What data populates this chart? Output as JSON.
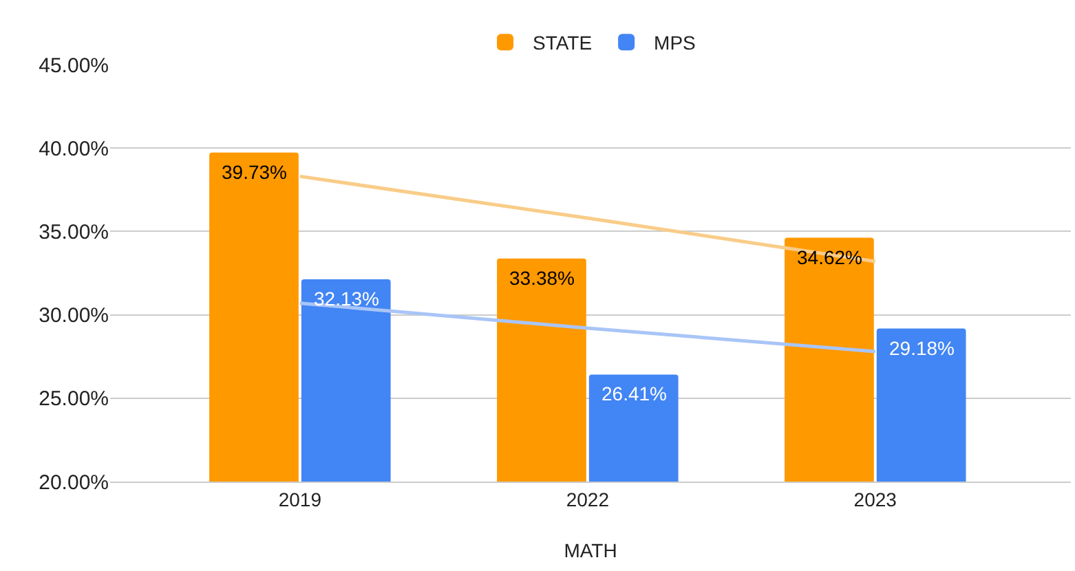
{
  "chart_data": {
    "type": "bar",
    "xlabel": "MATH",
    "categories": [
      "2019",
      "2022",
      "2023"
    ],
    "series": [
      {
        "name": "STATE",
        "color": "#ff9900",
        "values": [
          39.73,
          33.38,
          34.62
        ],
        "value_labels": [
          "39.73%",
          "33.38%",
          "34.62%"
        ]
      },
      {
        "name": "MPS",
        "color": "#4285f4",
        "values": [
          32.13,
          26.41,
          29.18
        ],
        "value_labels": [
          "32.13%",
          "26.41%",
          "29.18%"
        ]
      },
      {
        "type": "line",
        "color": "#f9cc88",
        "values": [
          38.3,
          35.8,
          33.2
        ]
      },
      {
        "type": "line",
        "color": "#a9c5f7",
        "values": [
          30.7,
          29.2,
          27.8
        ]
      }
    ],
    "ylim": [
      20,
      45
    ],
    "yticks": [
      {
        "value": 20,
        "label": "20.00%"
      },
      {
        "value": 25,
        "label": "25.00%"
      },
      {
        "value": 30,
        "label": "30.00%"
      },
      {
        "value": 35,
        "label": "35.00%"
      },
      {
        "value": 40,
        "label": "40.00%"
      },
      {
        "value": 45,
        "label": "45.00%"
      }
    ],
    "grid": "y",
    "legend": "top",
    "marker": "none",
    "line_style": "solid"
  }
}
